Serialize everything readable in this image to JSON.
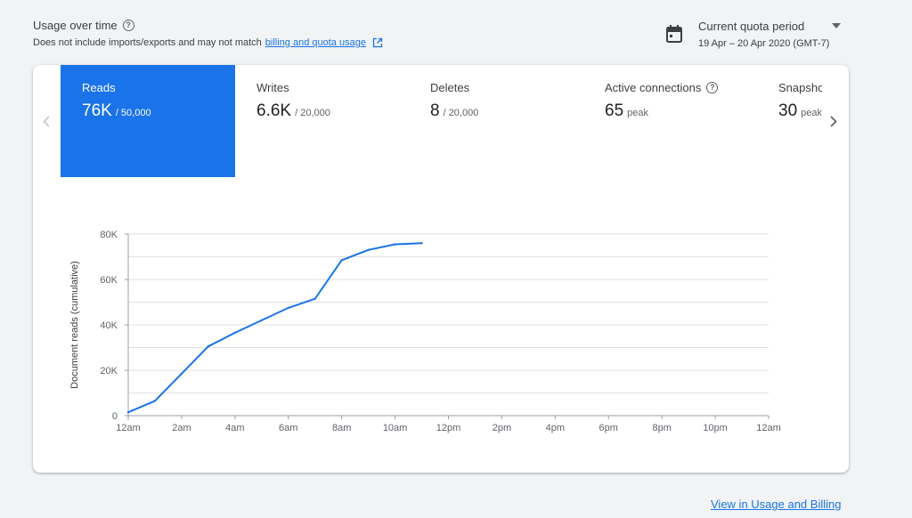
{
  "header": {
    "title": "Usage over time",
    "subtitle_prefix": "Does not include imports/exports and may not match",
    "subtitle_link": "billing and quota usage"
  },
  "period": {
    "label": "Current quota period",
    "range": "19 Apr – 20 Apr 2020 (GMT-7)"
  },
  "tabs": [
    {
      "label": "Reads",
      "value": "76K",
      "sub": "/ 50,000",
      "active": true
    },
    {
      "label": "Writes",
      "value": "6.6K",
      "sub": "/ 20,000",
      "active": false
    },
    {
      "label": "Deletes",
      "value": "8",
      "sub": "/ 20,000",
      "active": false
    },
    {
      "label": "Active connections",
      "value": "65",
      "sub": "peak",
      "active": false
    },
    {
      "label": "Snapshots",
      "value": "30",
      "sub": "peak",
      "active": false
    }
  ],
  "footer": {
    "link": "View in Usage and Billing"
  },
  "colors": {
    "accent": "#1a73e8",
    "line": "#1a73e8",
    "grid": "#e0e0e0"
  },
  "icons": {
    "calendar": "calendar-icon",
    "dropdown": "caret-down-icon",
    "help": "help-icon",
    "external": "external-link-icon"
  },
  "chart_data": {
    "type": "line",
    "ylabel": "Document reads (cumulative)",
    "xlabel": "",
    "x_ticks": [
      "12am",
      "2am",
      "4am",
      "6am",
      "8am",
      "10am",
      "12pm",
      "2pm",
      "4pm",
      "6pm",
      "8pm",
      "10pm",
      "12am"
    ],
    "y_ticks": [
      "0",
      "20K",
      "40K",
      "60K",
      "80K"
    ],
    "ylim": [
      0,
      80000
    ],
    "xlim_hours": [
      0,
      24
    ],
    "grid": true,
    "series": [
      {
        "x_hours": [
          0,
          1,
          2,
          3,
          4,
          5,
          6,
          7,
          8,
          9,
          10,
          11
        ],
        "values": [
          1500,
          6500,
          18500,
          30500,
          36500,
          42000,
          47500,
          51500,
          68500,
          73000,
          75500,
          76000
        ]
      }
    ]
  }
}
